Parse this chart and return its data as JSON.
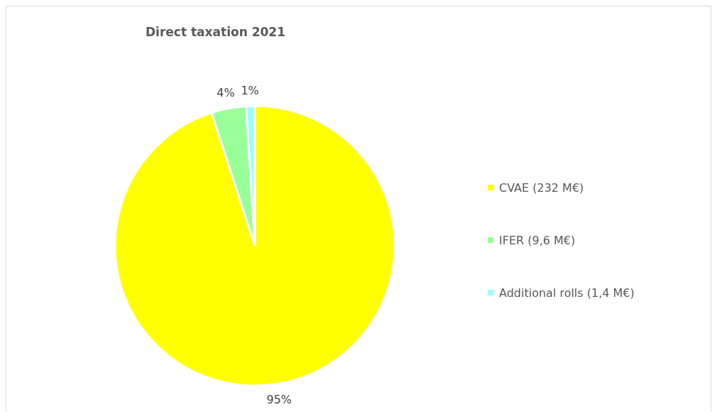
{
  "chart_data": {
    "type": "pie",
    "title": "Direct taxation 2021",
    "categories": [
      "CVAE (232 M€)",
      "IFER (9,6 M€)",
      "Additional rolls (1,4 M€)"
    ],
    "values": [
      95,
      4,
      1
    ],
    "colors": [
      "#ffff00",
      "#99ff99",
      "#99ffff"
    ],
    "value_labels": [
      "95%",
      "4%",
      "1%"
    ],
    "legend": "right"
  }
}
